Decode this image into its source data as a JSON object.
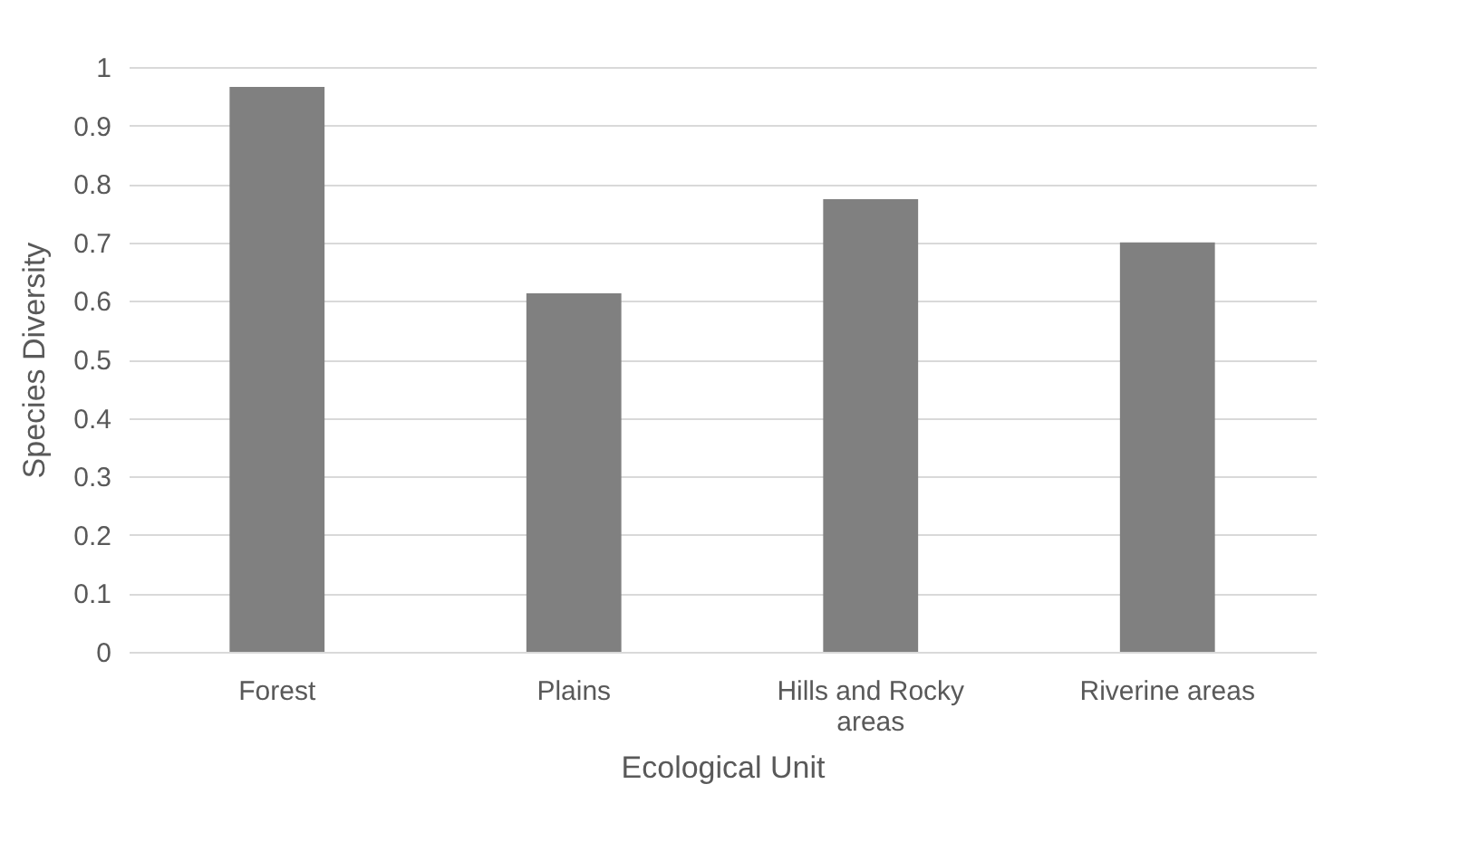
{
  "chart_data": {
    "type": "bar",
    "xlabel": "Ecological Unit",
    "ylabel": "Species Diversity",
    "categories": [
      "Forest",
      "Plains",
      "Hills and Rocky areas",
      "Riverine areas"
    ],
    "values": [
      0.966,
      0.613,
      0.774,
      0.7
    ],
    "color": "#808080",
    "ylim": [
      0,
      1
    ],
    "yticks": [
      0,
      0.1,
      0.2,
      0.3,
      0.4,
      0.5,
      0.6,
      0.7,
      0.8,
      0.9,
      1
    ],
    "grid": "y"
  }
}
